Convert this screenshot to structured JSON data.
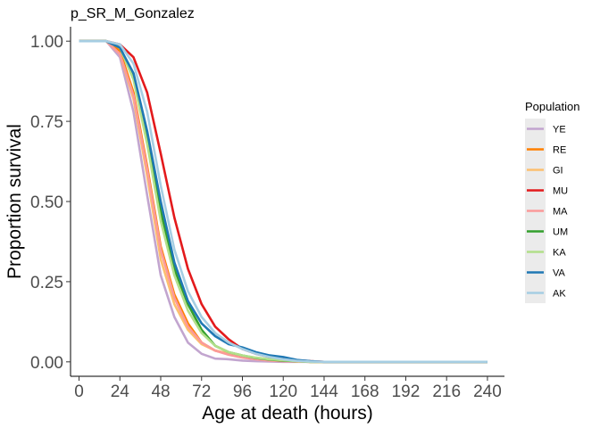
{
  "chart_data": {
    "type": "line",
    "title": "p_SR_M_Gonzalez",
    "xlabel": "Age at death (hours)",
    "ylabel": "Proportion survival",
    "xlim": [
      -5,
      250
    ],
    "ylim": [
      -0.045,
      1.045
    ],
    "x_ticks": [
      0,
      24,
      48,
      72,
      96,
      120,
      144,
      168,
      192,
      216,
      240
    ],
    "y_ticks": [
      0.0,
      0.25,
      0.5,
      0.75,
      1.0
    ],
    "y_tick_labels": [
      "0.00",
      "0.25",
      "0.50",
      "0.75",
      "1.00"
    ],
    "grid": false,
    "legend": {
      "title": "Population",
      "position": "right"
    },
    "x": [
      0,
      8,
      16,
      24,
      32,
      40,
      48,
      56,
      64,
      72,
      80,
      88,
      96,
      104,
      112,
      120,
      128,
      136,
      144,
      152,
      160,
      168,
      176,
      184,
      192,
      200,
      208,
      216,
      224,
      232,
      240
    ],
    "series": [
      {
        "name": "YE",
        "color": "#C2A5CF",
        "values": [
          1.0,
          1.0,
          1.0,
          0.95,
          0.78,
          0.52,
          0.27,
          0.14,
          0.06,
          0.025,
          0.01,
          0.008,
          0.004,
          0.002,
          0.001,
          0,
          0,
          0,
          0,
          0,
          0,
          0,
          0,
          0,
          0,
          0,
          0,
          0,
          0,
          0,
          0
        ]
      },
      {
        "name": "RE",
        "color": "#FF7F00",
        "values": [
          1.0,
          1.0,
          1.0,
          0.97,
          0.84,
          0.61,
          0.36,
          0.21,
          0.12,
          0.06,
          0.035,
          0.025,
          0.015,
          0.01,
          0.005,
          0.003,
          0.001,
          0,
          0,
          0,
          0,
          0,
          0,
          0,
          0,
          0,
          0,
          0,
          0,
          0,
          0
        ]
      },
      {
        "name": "GI",
        "color": "#FDBF6F",
        "values": [
          1.0,
          1.0,
          1.0,
          0.96,
          0.82,
          0.58,
          0.32,
          0.18,
          0.1,
          0.055,
          0.035,
          0.025,
          0.015,
          0.01,
          0.006,
          0.003,
          0.001,
          0,
          0,
          0,
          0,
          0,
          0,
          0,
          0,
          0,
          0,
          0,
          0,
          0,
          0
        ]
      },
      {
        "name": "MU",
        "color": "#E31A1C",
        "values": [
          1.0,
          1.0,
          1.0,
          0.99,
          0.95,
          0.84,
          0.65,
          0.45,
          0.29,
          0.18,
          0.11,
          0.07,
          0.04,
          0.025,
          0.015,
          0.01,
          0.005,
          0.002,
          0,
          0,
          0,
          0,
          0,
          0,
          0,
          0,
          0,
          0,
          0,
          0,
          0
        ]
      },
      {
        "name": "MA",
        "color": "#FB9A99",
        "values": [
          1.0,
          1.0,
          1.0,
          0.96,
          0.83,
          0.6,
          0.35,
          0.2,
          0.11,
          0.06,
          0.035,
          0.022,
          0.013,
          0.008,
          0.004,
          0.002,
          0.001,
          0,
          0,
          0,
          0,
          0,
          0,
          0,
          0,
          0,
          0,
          0,
          0,
          0,
          0
        ]
      },
      {
        "name": "UM",
        "color": "#33A02C",
        "values": [
          1.0,
          1.0,
          1.0,
          0.98,
          0.89,
          0.7,
          0.47,
          0.29,
          0.18,
          0.1,
          0.05,
          0.03,
          0.02,
          0.012,
          0.007,
          0.004,
          0.002,
          0,
          0,
          0,
          0,
          0,
          0,
          0,
          0,
          0,
          0,
          0,
          0,
          0,
          0
        ]
      },
      {
        "name": "KA",
        "color": "#B2DF8A",
        "values": [
          1.0,
          1.0,
          1.0,
          0.98,
          0.88,
          0.68,
          0.44,
          0.27,
          0.16,
          0.09,
          0.05,
          0.03,
          0.02,
          0.013,
          0.008,
          0.005,
          0.002,
          0,
          0,
          0,
          0,
          0,
          0,
          0,
          0,
          0,
          0,
          0,
          0,
          0,
          0
        ]
      },
      {
        "name": "VA",
        "color": "#1F78B4",
        "values": [
          1.0,
          1.0,
          1.0,
          0.98,
          0.9,
          0.72,
          0.5,
          0.31,
          0.19,
          0.12,
          0.08,
          0.055,
          0.045,
          0.03,
          0.02,
          0.015,
          0.006,
          0.002,
          0,
          0,
          0,
          0,
          0,
          0,
          0,
          0,
          0,
          0,
          0,
          0,
          0
        ]
      },
      {
        "name": "AK",
        "color": "#A6CEE3",
        "values": [
          1.0,
          1.0,
          1.0,
          0.99,
          0.93,
          0.78,
          0.55,
          0.35,
          0.22,
          0.14,
          0.09,
          0.06,
          0.04,
          0.025,
          0.015,
          0.008,
          0.003,
          0.001,
          0,
          0,
          0,
          0,
          0,
          0,
          0,
          0,
          0,
          0,
          0,
          0,
          0
        ]
      }
    ]
  }
}
